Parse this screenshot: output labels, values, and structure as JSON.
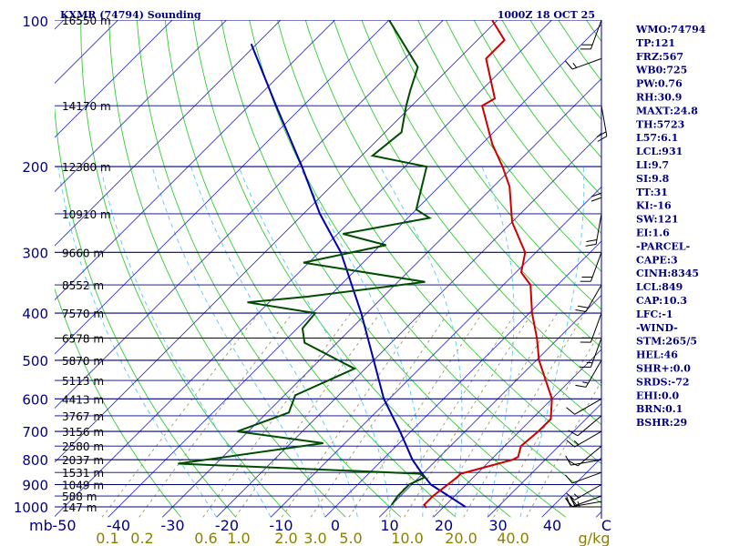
{
  "header": {
    "station": "KXMR (74794) Sounding",
    "time": "1000Z 18 OCT 25"
  },
  "stats": [
    "WMO:74794",
    "TP:121",
    "FRZ:567",
    "WB0:725",
    "PW:0.76",
    "RH:30.9",
    "MAXT:24.8",
    "TH:5723",
    "L57:6.1",
    "LCL:931",
    "LI:9.7",
    "SI:9.8",
    "TT:31",
    "KI:-16",
    "SW:121",
    "EI:1.6",
    "-PARCEL-",
    "CAPE:3",
    "CINH:8345",
    "LCL:849",
    "CAP:10.3",
    "LFC:-1",
    "-WIND-",
    "STM:265/5",
    "HEL:46",
    "SHR+:0.0",
    "SRDS:-72",
    "EHI:0.0",
    "BRN:0.1",
    "BSHR:29"
  ],
  "colors": {
    "isobar": "#000080",
    "isotherm": "#3333cc",
    "dry_adiabat": "#33cc33",
    "moist_adiabat": "#66ccff",
    "mixing_ratio": "#999966",
    "temperature": "#cc0000",
    "dewpoint": "#004d00",
    "parcel": "#0000aa",
    "wind_barb": "#000000"
  },
  "chart_data": {
    "type": "skew-t",
    "yscale": "log-pressure",
    "ylabel": "mb",
    "ylim": [
      1000,
      100
    ],
    "xlim": [
      -50,
      50
    ],
    "pressure_ticks": [
      100,
      200,
      300,
      400,
      500,
      600,
      700,
      800,
      900,
      1000
    ],
    "pressure_tick_labels": [
      "100",
      "200",
      "300",
      "400",
      "500",
      "600",
      "700",
      "800",
      "900",
      "1000"
    ],
    "height_labels": [
      {
        "p": 100,
        "label": "16550 m"
      },
      {
        "p": 150,
        "label": "14170 m"
      },
      {
        "p": 200,
        "label": "12380 m"
      },
      {
        "p": 250,
        "label": "10910 m"
      },
      {
        "p": 300,
        "label": "9660 m"
      },
      {
        "p": 350,
        "label": "8552 m"
      },
      {
        "p": 400,
        "label": "7570 m"
      },
      {
        "p": 450,
        "label": "6578 m"
      },
      {
        "p": 500,
        "label": "5870 m"
      },
      {
        "p": 550,
        "label": "5113 m"
      },
      {
        "p": 600,
        "label": "4413 m"
      },
      {
        "p": 650,
        "label": "3767 m"
      },
      {
        "p": 700,
        "label": "3156 m"
      },
      {
        "p": 750,
        "label": "2580 m"
      },
      {
        "p": 800,
        "label": "2037 m"
      },
      {
        "p": 850,
        "label": "1531 m"
      },
      {
        "p": 900,
        "label": "1049 m"
      },
      {
        "p": 950,
        "label": "588 m"
      },
      {
        "p": 1000,
        "label": "147 m"
      }
    ],
    "temp_tick_labels": [
      {
        "t": -50,
        "label": "-50"
      },
      {
        "t": -40,
        "label": "-40"
      },
      {
        "t": -30,
        "label": "-30"
      },
      {
        "t": -20,
        "label": "-20"
      },
      {
        "t": -10,
        "label": "-10"
      },
      {
        "t": 0,
        "label": "0"
      },
      {
        "t": 10,
        "label": "10"
      },
      {
        "t": 20,
        "label": "20"
      },
      {
        "t": 30,
        "label": "30"
      },
      {
        "t": 40,
        "label": "40"
      },
      {
        "t": 50,
        "label": "C"
      }
    ],
    "mixing_ratio_labels": [
      "0.1",
      "0.2",
      "0.6",
      "1.0",
      "2.0",
      "3.0",
      "5.0",
      "10.0",
      "20.0",
      "40.0",
      "g/kg"
    ],
    "temperature": [
      {
        "p": 1005,
        "t": 17.0
      },
      {
        "p": 990,
        "t": 16.0
      },
      {
        "p": 950,
        "t": 16.0
      },
      {
        "p": 870,
        "t": 17.0
      },
      {
        "p": 855,
        "t": 17.0
      },
      {
        "p": 800,
        "t": 24.0
      },
      {
        "p": 790,
        "t": 24.5
      },
      {
        "p": 750,
        "t": 23.0
      },
      {
        "p": 700,
        "t": 23.5
      },
      {
        "p": 660,
        "t": 23.5
      },
      {
        "p": 600,
        "t": 20.0
      },
      {
        "p": 500,
        "t": 10.5
      },
      {
        "p": 450,
        "t": 6.0
      },
      {
        "p": 400,
        "t": 0.5
      },
      {
        "p": 350,
        "t": -5.0
      },
      {
        "p": 330,
        "t": -9.0
      },
      {
        "p": 300,
        "t": -12.0
      },
      {
        "p": 260,
        "t": -20.0
      },
      {
        "p": 220,
        "t": -27.0
      },
      {
        "p": 200,
        "t": -32.0
      },
      {
        "p": 180,
        "t": -38.0
      },
      {
        "p": 150,
        "t": -47.0
      },
      {
        "p": 145,
        "t": -46.0
      },
      {
        "p": 120,
        "t": -55.0
      },
      {
        "p": 110,
        "t": -55.0
      },
      {
        "p": 100,
        "t": -61.0
      }
    ],
    "dewpoint": [
      {
        "p": 990,
        "t": 10.0
      },
      {
        "p": 950,
        "t": 9.5
      },
      {
        "p": 900,
        "t": 9.5
      },
      {
        "p": 870,
        "t": 11.0
      },
      {
        "p": 855,
        "t": 9.5
      },
      {
        "p": 850,
        "t": 4.0
      },
      {
        "p": 815,
        "t": -37.0
      },
      {
        "p": 740,
        "t": -14.0
      },
      {
        "p": 700,
        "t": -32.0
      },
      {
        "p": 640,
        "t": -26.0
      },
      {
        "p": 590,
        "t": -28.0
      },
      {
        "p": 520,
        "t": -22.0
      },
      {
        "p": 460,
        "t": -36.0
      },
      {
        "p": 430,
        "t": -39.0
      },
      {
        "p": 400,
        "t": -39.5
      },
      {
        "p": 380,
        "t": -54.0
      },
      {
        "p": 370,
        "t": -44.0
      },
      {
        "p": 345,
        "t": -25.0
      },
      {
        "p": 315,
        "t": -51.0
      },
      {
        "p": 290,
        "t": -39.0
      },
      {
        "p": 275,
        "t": -49.0
      },
      {
        "p": 255,
        "t": -36.0
      },
      {
        "p": 245,
        "t": -40.0
      },
      {
        "p": 200,
        "t": -46.0
      },
      {
        "p": 190,
        "t": -58.0
      },
      {
        "p": 170,
        "t": -57.0
      },
      {
        "p": 150,
        "t": -61.0
      },
      {
        "p": 140,
        "t": -63.0
      },
      {
        "p": 125,
        "t": -66.0
      },
      {
        "p": 100,
        "t": -80.0
      }
    ],
    "parcel": [
      {
        "p": 1000,
        "t": 24.0
      },
      {
        "p": 900,
        "t": 13.5
      },
      {
        "p": 850,
        "t": 9.5
      },
      {
        "p": 800,
        "t": 5.5
      },
      {
        "p": 700,
        "t": -2.0
      },
      {
        "p": 600,
        "t": -11.0
      },
      {
        "p": 500,
        "t": -20.0
      },
      {
        "p": 400,
        "t": -31.0
      },
      {
        "p": 300,
        "t": -46.0
      },
      {
        "p": 250,
        "t": -57.0
      },
      {
        "p": 200,
        "t": -69.0
      },
      {
        "p": 150,
        "t": -85.0
      },
      {
        "p": 112,
        "t": -101.0
      }
    ],
    "wind_barbs": [
      {
        "p": 1000,
        "dir": 270,
        "spd": 25
      },
      {
        "p": 975,
        "dir": 260,
        "spd": 20
      },
      {
        "p": 950,
        "dir": 250,
        "spd": 15
      },
      {
        "p": 900,
        "dir": 240,
        "spd": 15
      },
      {
        "p": 850,
        "dir": 250,
        "spd": 10
      },
      {
        "p": 800,
        "dir": 260,
        "spd": 10
      },
      {
        "p": 750,
        "dir": 230,
        "spd": 10
      },
      {
        "p": 700,
        "dir": 240,
        "spd": 15
      },
      {
        "p": 650,
        "dir": 230,
        "spd": 10
      },
      {
        "p": 600,
        "dir": 240,
        "spd": 10
      },
      {
        "p": 500,
        "dir": 210,
        "spd": 15
      },
      {
        "p": 450,
        "dir": 200,
        "spd": 15
      },
      {
        "p": 400,
        "dir": 200,
        "spd": 20
      },
      {
        "p": 350,
        "dir": 210,
        "spd": 20
      },
      {
        "p": 300,
        "dir": 200,
        "spd": 20
      },
      {
        "p": 250,
        "dir": 190,
        "spd": 20
      },
      {
        "p": 200,
        "dir": 180,
        "spd": 20
      },
      {
        "p": 150,
        "dir": 170,
        "spd": 20
      },
      {
        "p": 120,
        "dir": 250,
        "spd": 15
      },
      {
        "p": 100,
        "dir": 200,
        "spd": 20
      }
    ]
  }
}
